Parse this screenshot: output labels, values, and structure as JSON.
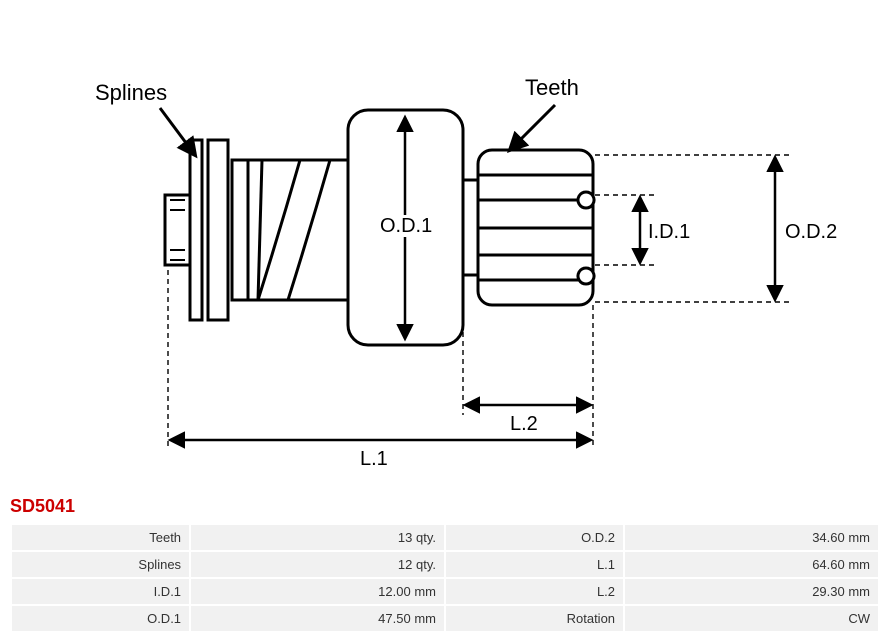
{
  "part_code": "SD5041",
  "diagram": {
    "labels": {
      "splines": "Splines",
      "teeth": "Teeth",
      "od1": "O.D.1",
      "od2": "O.D.2",
      "id1": "I.D.1",
      "l1": "L.1",
      "l2": "L.2"
    },
    "colors": {
      "stroke": "#000000",
      "background": "#ffffff",
      "fill": "#ffffff",
      "text": "#000000"
    },
    "line_width_main": 3,
    "line_width_dash": 1.4,
    "font_label": 22,
    "font_dim": 22
  },
  "specs": {
    "rows": [
      {
        "label1": "Teeth",
        "value1": "13 qty.",
        "label2": "O.D.2",
        "value2": "34.60 mm"
      },
      {
        "label1": "Splines",
        "value1": "12 qty.",
        "label2": "L.1",
        "value2": "64.60 mm"
      },
      {
        "label1": "I.D.1",
        "value1": "12.00 mm",
        "label2": "L.2",
        "value2": "29.30 mm"
      },
      {
        "label1": "O.D.1",
        "value1": "47.50 mm",
        "label2": "Rotation",
        "value2": "CW"
      }
    ]
  }
}
